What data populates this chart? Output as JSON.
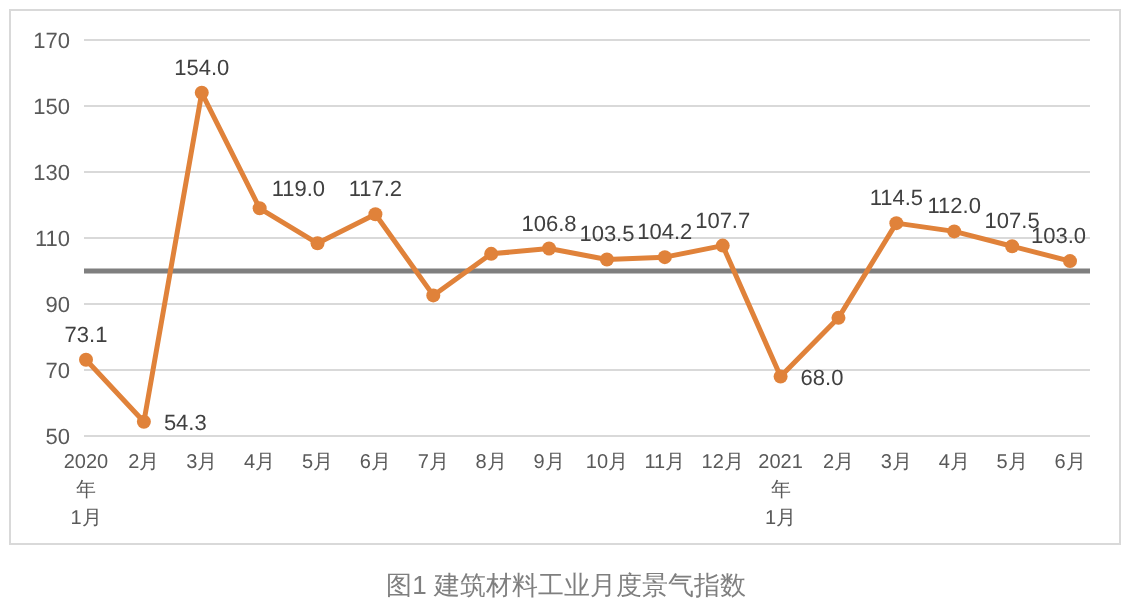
{
  "chart_data": {
    "type": "line",
    "title": "图1 建筑材料工业月度景气指数",
    "categories": [
      "2020\n年\n1月",
      "2月",
      "3月",
      "4月",
      "5月",
      "6月",
      "7月",
      "8月",
      "9月",
      "10月",
      "11月",
      "12月",
      "2021\n年\n1月",
      "2月",
      "3月",
      "4月",
      "5月",
      "6月"
    ],
    "series": [
      {
        "color": "#e0823a",
        "values": [
          73.1,
          54.3,
          154.0,
          119.0,
          108.4,
          117.2,
          92.6,
          105.2,
          106.8,
          103.5,
          104.2,
          107.7,
          68.0,
          85.8,
          114.5,
          112.0,
          107.5,
          103.0
        ],
        "value_labels": [
          "73.1",
          "54.3",
          "154.0",
          "119.0",
          null,
          "117.2",
          null,
          null,
          "106.8",
          "103.5",
          "104.2",
          "107.7",
          "68.0",
          null,
          "114.5",
          "112.0",
          "107.5",
          "103.0"
        ]
      }
    ],
    "ylim": [
      50,
      170
    ],
    "yticks": [
      50,
      70,
      90,
      110,
      130,
      150,
      170
    ],
    "grid": "y",
    "marker": "circle",
    "line_style": "solid",
    "ref_lines": [
      {
        "axis": "y",
        "value": 100,
        "color": "#7f7f7f"
      }
    ]
  }
}
